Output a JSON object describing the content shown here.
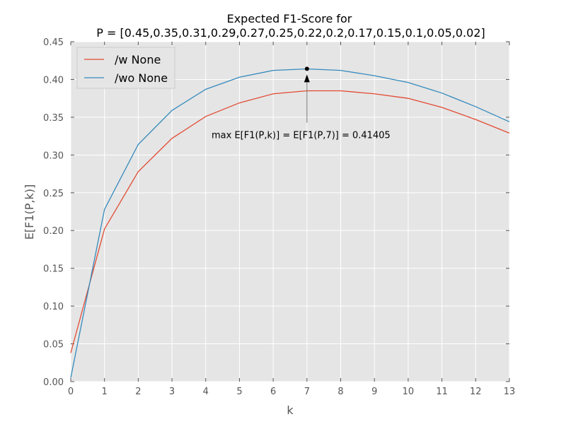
{
  "chart_data": {
    "type": "line",
    "title": "Expected F1-Score for",
    "subtitle": "P = [0.45,0.35,0.31,0.29,0.27,0.25,0.22,0.2,0.17,0.15,0.1,0.05,0.02]",
    "xlabel": "k",
    "ylabel": "E[F1(P,k)]",
    "xlim": [
      0,
      13
    ],
    "ylim": [
      0.0,
      0.45
    ],
    "x": [
      0,
      1,
      2,
      3,
      4,
      5,
      6,
      7,
      8,
      9,
      10,
      11,
      12,
      13
    ],
    "x_ticks": [
      "0",
      "1",
      "2",
      "3",
      "4",
      "5",
      "6",
      "7",
      "8",
      "9",
      "10",
      "11",
      "12",
      "13"
    ],
    "y_ticks": [
      0.0,
      0.05,
      0.1,
      0.15,
      0.2,
      0.25,
      0.3,
      0.35,
      0.4,
      0.45
    ],
    "y_tick_labels": [
      "0.00",
      "0.05",
      "0.10",
      "0.15",
      "0.20",
      "0.25",
      "0.30",
      "0.35",
      "0.40",
      "0.45"
    ],
    "grid": true,
    "legend": "top-left",
    "series": [
      {
        "name": "/w None",
        "color": "#E24A33",
        "values": [
          0.038,
          0.202,
          0.278,
          0.322,
          0.351,
          0.369,
          0.381,
          0.385,
          0.385,
          0.381,
          0.375,
          0.363,
          0.347,
          0.329
        ]
      },
      {
        "name": "/wo None",
        "color": "#348ABD",
        "values": [
          0.005,
          0.228,
          0.314,
          0.359,
          0.387,
          0.403,
          0.412,
          0.414,
          0.412,
          0.405,
          0.396,
          0.382,
          0.364,
          0.344
        ]
      }
    ],
    "annotation": {
      "text": "max E[F1(P,k)] = E[F1(P,7)] = 0.41405",
      "point": [
        7,
        0.41405
      ],
      "text_at": [
        7,
        0.324
      ]
    },
    "colors": {
      "plot_background": "#E5E5E5",
      "grid": "#FFFFFF",
      "tick_text": "#555555"
    }
  }
}
